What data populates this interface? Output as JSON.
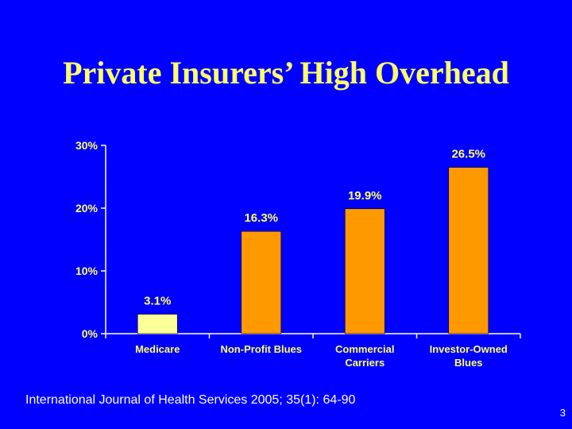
{
  "slide": {
    "title": "Private Insurers’ High Overhead",
    "citation": "International Journal of Health Services 2005; 35(1): 64-90",
    "page_number": "3"
  },
  "colors": {
    "background": "#0000FF",
    "title": "#FFFF66",
    "text": "#FFFF66",
    "axis": "#FFFFFF",
    "bar_medicare": "#FFFF99",
    "bar_private": "#FF9900"
  },
  "chart_data": {
    "type": "bar",
    "categories": [
      [
        "Medicare"
      ],
      [
        "Non-Profit Blues"
      ],
      [
        "Commercial",
        "Carriers"
      ],
      [
        "Investor-Owned",
        "Blues"
      ]
    ],
    "values": [
      3.1,
      16.3,
      19.9,
      26.5
    ],
    "data_labels": [
      "3.1%",
      "16.3%",
      "19.9%",
      "26.5%"
    ],
    "bar_colors": [
      "#FFFF99",
      "#FF9900",
      "#FF9900",
      "#FF9900"
    ],
    "yticks": [
      0,
      10,
      20,
      30
    ],
    "ytick_labels": [
      "0%",
      "10%",
      "20%",
      "30%"
    ],
    "ylim": [
      0,
      30
    ],
    "grid": false,
    "legend": "none"
  }
}
